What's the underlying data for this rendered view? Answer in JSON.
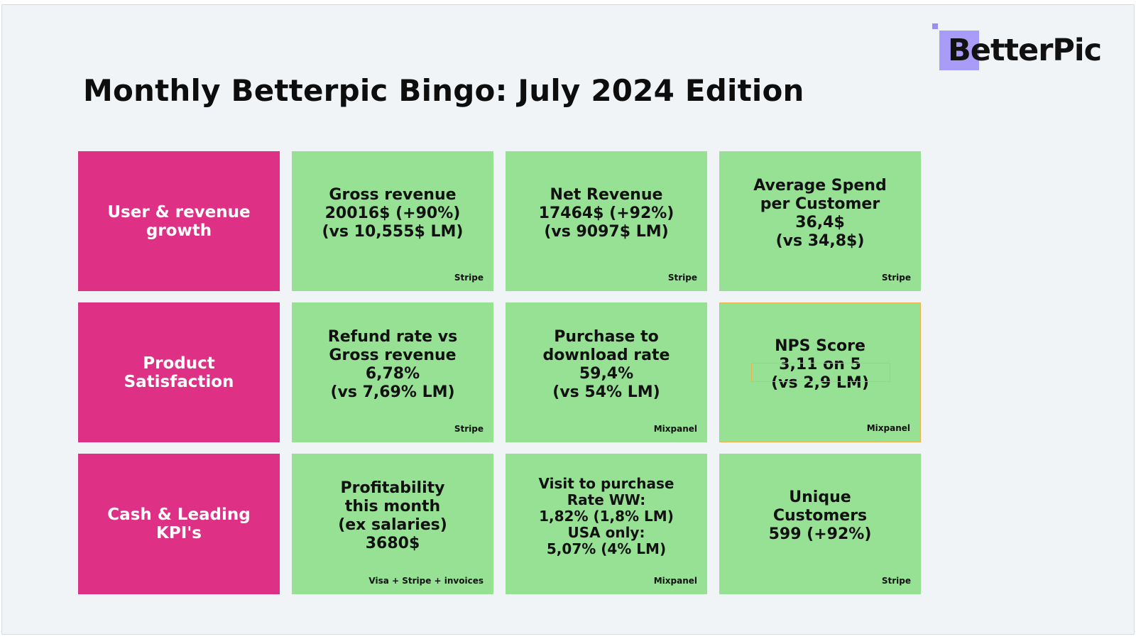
{
  "slide": {
    "title": "Monthly Betterpic Bingo: July 2024 Edition"
  },
  "logo": {
    "text": "BetterPic",
    "accent_color": "#a99cf8"
  },
  "colors": {
    "category_bg": "#de3085",
    "metric_bg": "#96e194",
    "slide_bg": "#f1f4f6"
  },
  "rows": [
    {
      "category": "User & revenue growth",
      "cells": [
        {
          "text": "Gross revenue\n20016$ (+90%)\n(vs 10,555$ LM)",
          "source": "Stripe"
        },
        {
          "text": "Net Revenue\n17464$ (+92%)\n(vs 9097$ LM)",
          "source": "Stripe"
        },
        {
          "text": "Average Spend\nper Customer\n36,4$\n(vs 34,8$)",
          "source": "Stripe"
        }
      ]
    },
    {
      "category": "Product Satisfaction",
      "cells": [
        {
          "text": "Refund rate vs\nGross revenue\n6,78%\n(vs 7,69% LM)",
          "source": "Stripe"
        },
        {
          "text": "Purchase to\ndownload rate\n59,4%\n(vs 54% LM)",
          "source": "Mixpanel"
        },
        {
          "text": "NPS Score\n3,11 on 5\n(vs  2,9 LM)",
          "source": "Mixpanel"
        }
      ]
    },
    {
      "category": "Cash & Leading KPI's",
      "cells": [
        {
          "text": "Profitability\nthis month\n(ex salaries)\n3680$",
          "source": "Visa + Stripe + invoices"
        },
        {
          "text": "Visit to purchase\nRate WW:\n1,82% (1,8% LM)\nUSA only:\n5,07% (4% LM)",
          "source": "Mixpanel"
        },
        {
          "text": "Unique\nCustomers\n599 (+92%)",
          "source": "Stripe"
        }
      ]
    }
  ]
}
